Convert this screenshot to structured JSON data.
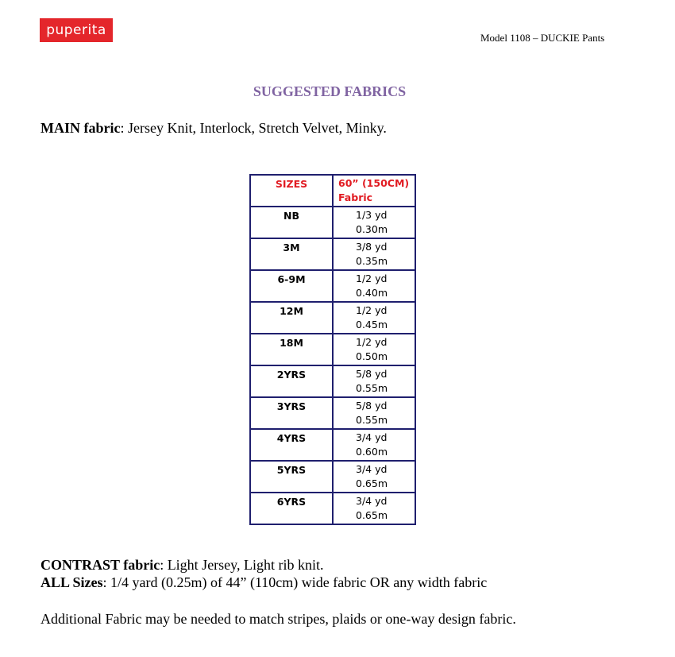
{
  "header": {
    "logo": "puperita",
    "model": "Model 1108 – DUCKIE Pants"
  },
  "title": "SUGGESTED FABRICS",
  "main_fabric": {
    "label": "MAIN fabric",
    "text": ": Jersey Knit, Interlock, Stretch Velvet, Minky."
  },
  "table": {
    "headers": [
      "SIZES",
      "60” (150CM)",
      "Fabric"
    ],
    "rows": [
      {
        "size": "NB",
        "yd": "1/3 yd",
        "m": "0.30m"
      },
      {
        "size": "3M",
        "yd": "3/8 yd",
        "m": "0.35m"
      },
      {
        "size": "6-9M",
        "yd": "1/2 yd",
        "m": "0.40m"
      },
      {
        "size": "12M",
        "yd": "1/2 yd",
        "m": "0.45m"
      },
      {
        "size": "18M",
        "yd": "1/2 yd",
        "m": "0.50m"
      },
      {
        "size": "2YRS",
        "yd": "5/8 yd",
        "m": "0.55m"
      },
      {
        "size": "3YRS",
        "yd": "5/8 yd",
        "m": "0.55m"
      },
      {
        "size": "4YRS",
        "yd": "3/4 yd",
        "m": "0.60m"
      },
      {
        "size": "5YRS",
        "yd": "3/4 yd",
        "m": "0.65m"
      },
      {
        "size": "6YRS",
        "yd": "3/4 yd",
        "m": "0.65m"
      }
    ]
  },
  "contrast_fabric": {
    "label": "CONTRAST fabric",
    "text": ": Light Jersey, Light rib knit."
  },
  "all_sizes": {
    "label": "ALL Sizes",
    "text": ": 1/4 yard (0.25m) of 44” (110cm) wide fabric OR any width fabric"
  },
  "note": "Additional Fabric may be needed to match stripes, plaids or one-way design fabric."
}
